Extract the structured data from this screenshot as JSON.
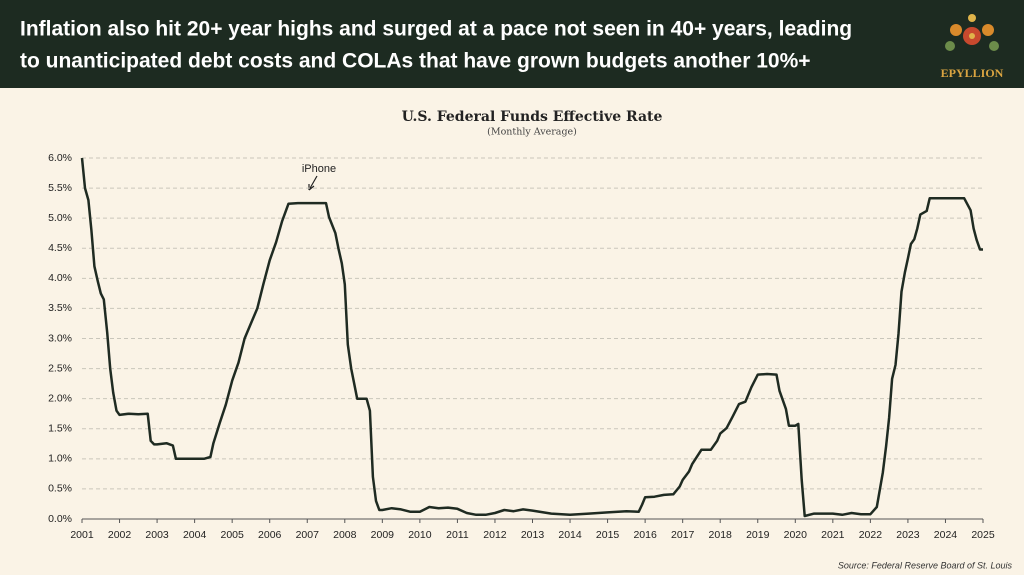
{
  "header": {
    "title_lines": [
      "Inflation also hit 20+ year highs and surged at a pace not seen in 40+ years, leading",
      "to unanticipated debt costs and COLAs that have grown budgets another 10%+"
    ],
    "logo": "EPYLLION"
  },
  "chart_data": {
    "type": "line",
    "title": "U.S. Federal Funds Effective Rate",
    "subtitle": "(Monthly Average)",
    "annotation": "iPhone",
    "source": "Source: Federal Reserve Board of St. Louis",
    "color": "#1f2b22",
    "grid": true,
    "x": [
      2001.0,
      2001.08,
      2001.17,
      2001.25,
      2001.33,
      2001.42,
      2001.5,
      2001.58,
      2001.67,
      2001.75,
      2001.83,
      2001.92,
      2002.0,
      2002.25,
      2002.5,
      2002.75,
      2002.83,
      2002.92,
      2003.0,
      2003.25,
      2003.42,
      2003.5,
      2003.75,
      2004.0,
      2004.25,
      2004.42,
      2004.5,
      2004.67,
      2004.83,
      2005.0,
      2005.17,
      2005.33,
      2005.5,
      2005.67,
      2005.83,
      2006.0,
      2006.17,
      2006.33,
      2006.5,
      2006.75,
      2007.0,
      2007.25,
      2007.5,
      2007.58,
      2007.75,
      2007.83,
      2007.92,
      2008.0,
      2008.08,
      2008.17,
      2008.33,
      2008.42,
      2008.58,
      2008.67,
      2008.75,
      2008.83,
      2008.92,
      2009.0,
      2009.25,
      2009.5,
      2009.75,
      2010.0,
      2010.25,
      2010.5,
      2010.75,
      2011.0,
      2011.25,
      2011.5,
      2011.75,
      2012.0,
      2012.25,
      2012.5,
      2012.75,
      2013.0,
      2013.5,
      2014.0,
      2014.5,
      2015.0,
      2015.5,
      2015.83,
      2015.92,
      2016.0,
      2016.25,
      2016.5,
      2016.75,
      2016.92,
      2017.0,
      2017.17,
      2017.25,
      2017.5,
      2017.75,
      2017.92,
      2018.0,
      2018.17,
      2018.33,
      2018.5,
      2018.67,
      2018.83,
      2019.0,
      2019.25,
      2019.5,
      2019.58,
      2019.75,
      2019.83,
      2020.0,
      2020.08,
      2020.17,
      2020.25,
      2020.5,
      2020.75,
      2021.0,
      2021.25,
      2021.5,
      2021.75,
      2022.0,
      2022.17,
      2022.33,
      2022.42,
      2022.5,
      2022.58,
      2022.67,
      2022.75,
      2022.83,
      2022.92,
      2023.0,
      2023.08,
      2023.17,
      2023.25,
      2023.33,
      2023.5,
      2023.58,
      2023.75,
      2024.0,
      2024.25,
      2024.5,
      2024.67,
      2024.75,
      2024.83,
      2024.92,
      2025.0
    ],
    "values": [
      6.0,
      5.5,
      5.3,
      4.8,
      4.2,
      3.95,
      3.75,
      3.65,
      3.1,
      2.5,
      2.1,
      1.8,
      1.73,
      1.75,
      1.74,
      1.75,
      1.3,
      1.24,
      1.24,
      1.26,
      1.22,
      1.0,
      1.0,
      1.0,
      1.0,
      1.03,
      1.26,
      1.6,
      1.9,
      2.3,
      2.6,
      3.0,
      3.25,
      3.5,
      3.9,
      4.3,
      4.6,
      4.95,
      5.24,
      5.25,
      5.25,
      5.25,
      5.25,
      5.02,
      4.75,
      4.5,
      4.25,
      3.9,
      2.9,
      2.5,
      2.0,
      2.0,
      2.0,
      1.8,
      0.7,
      0.3,
      0.15,
      0.15,
      0.18,
      0.16,
      0.12,
      0.12,
      0.2,
      0.18,
      0.19,
      0.17,
      0.1,
      0.07,
      0.07,
      0.1,
      0.15,
      0.13,
      0.16,
      0.14,
      0.09,
      0.07,
      0.09,
      0.11,
      0.13,
      0.12,
      0.24,
      0.36,
      0.37,
      0.4,
      0.41,
      0.54,
      0.65,
      0.79,
      0.91,
      1.15,
      1.15,
      1.3,
      1.42,
      1.51,
      1.7,
      1.91,
      1.95,
      2.19,
      2.4,
      2.41,
      2.4,
      2.13,
      1.83,
      1.55,
      1.55,
      1.58,
      0.65,
      0.05,
      0.09,
      0.09,
      0.09,
      0.07,
      0.1,
      0.08,
      0.08,
      0.2,
      0.77,
      1.21,
      1.68,
      2.33,
      2.56,
      3.08,
      3.78,
      4.1,
      4.33,
      4.57,
      4.65,
      4.83,
      5.06,
      5.12,
      5.33,
      5.33,
      5.33,
      5.33,
      5.33,
      5.13,
      4.83,
      4.64,
      4.48,
      4.48
    ],
    "xlim": [
      2001,
      2025
    ],
    "xticks": [
      2001,
      2002,
      2003,
      2004,
      2005,
      2006,
      2007,
      2008,
      2009,
      2010,
      2011,
      2012,
      2013,
      2014,
      2015,
      2016,
      2017,
      2018,
      2019,
      2020,
      2021,
      2022,
      2023,
      2024,
      2025
    ],
    "ylim": [
      0,
      6
    ],
    "yticks": [
      {
        "value": 0,
        "label": "0.0%"
      },
      {
        "value": 0.5,
        "label": "0.5%"
      },
      {
        "value": 1,
        "label": "1.0%"
      },
      {
        "value": 1.5,
        "label": "1.5%"
      },
      {
        "value": 2,
        "label": "2.0%"
      },
      {
        "value": 2.5,
        "label": "2.5%"
      },
      {
        "value": 3,
        "label": "3.0%"
      },
      {
        "value": 3.5,
        "label": "3.5%"
      },
      {
        "value": 4,
        "label": "4.0%"
      },
      {
        "value": 4.5,
        "label": "4.5%"
      },
      {
        "value": 5,
        "label": "5.0%"
      },
      {
        "value": 5.5,
        "label": "5.5%"
      },
      {
        "value": 6,
        "label": "6.0%"
      }
    ]
  }
}
